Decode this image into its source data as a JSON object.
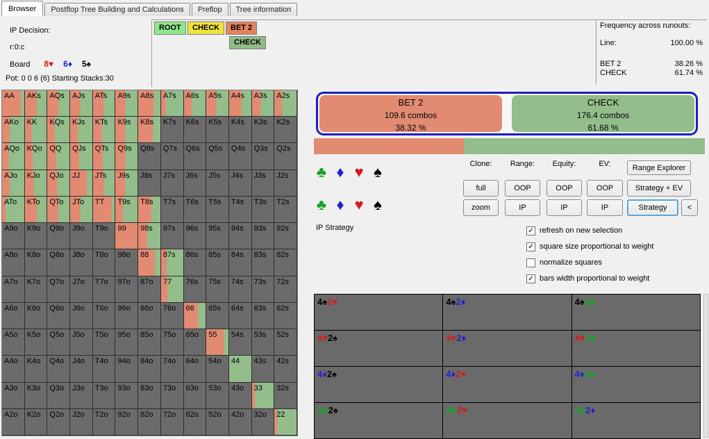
{
  "tabs": [
    {
      "label": "Browser",
      "active": true
    },
    {
      "label": "Postflop Tree Building and Calculations",
      "active": false
    },
    {
      "label": "Preflop",
      "active": false
    },
    {
      "label": "Tree information",
      "active": false
    }
  ],
  "info": {
    "decision_label": "IP Decision:",
    "node_id": "r:0:c",
    "board_label": "Board",
    "board_cards": [
      [
        "8",
        "h"
      ],
      [
        "6",
        "d"
      ],
      [
        "5",
        "s"
      ]
    ],
    "pot_line": "Pot: 0 0 6 (6) Starting Stacks:30"
  },
  "tree": {
    "nodes": [
      {
        "label": "ROOT",
        "color": "#8ee88c"
      },
      {
        "label": "CHECK",
        "color": "#f2e33c"
      },
      {
        "label": "BET 2",
        "color": "#e2845e"
      },
      {
        "label": "CHECK",
        "color": "#90bc85"
      }
    ]
  },
  "frequency": {
    "title": "Frequency across runouts:",
    "rows": [
      {
        "label": "Line:",
        "value": "100.00 %"
      },
      {
        "label": "BET 2",
        "value": "38.26 %"
      },
      {
        "label": "CHECK",
        "value": "61.74 %"
      }
    ]
  },
  "actions": {
    "bet": {
      "label": "BET 2",
      "combos": "109.6 combos",
      "pct": "38.32 %"
    },
    "check": {
      "label": "CHECK",
      "combos": "176.4 combos",
      "pct": "61.68 %"
    },
    "bar_bet_pct": 38.32
  },
  "suit_rows": [
    [
      "c",
      "d",
      "h",
      "s"
    ],
    [
      "c",
      "d",
      "h",
      "s"
    ]
  ],
  "toolbar": {
    "columns": [
      {
        "label": "Clone:",
        "buttons": [
          "full",
          "zoom"
        ]
      },
      {
        "label": "Range:",
        "buttons": [
          "OOP",
          "IP"
        ]
      },
      {
        "label": "Equity:",
        "buttons": [
          "OOP",
          "IP"
        ]
      },
      {
        "label": "EV:",
        "buttons": [
          "OOP",
          "IP"
        ]
      }
    ],
    "right_buttons": [
      {
        "label": "Range Explorer",
        "focus": false
      },
      {
        "label": "Strategy + EV",
        "focus": false
      },
      {
        "label": "Strategy",
        "focus": true
      },
      {
        "label": "<",
        "focus": false
      }
    ]
  },
  "strategy_label": "IP Strategy",
  "checkboxes": [
    {
      "label": "refresh on new selection",
      "checked": true
    },
    {
      "label": "square size proportional to weight",
      "checked": true
    },
    {
      "label": "normalize squares",
      "checked": false
    },
    {
      "label": "bars width proportional to weight",
      "checked": true
    }
  ],
  "matrix": {
    "rows": [
      [
        [
          "AA",
          0.85
        ],
        [
          "AKs",
          0.55
        ],
        [
          "AQs",
          0.5
        ],
        [
          "AJs",
          0.45
        ],
        [
          "ATs",
          0.5
        ],
        [
          "A9s",
          0.45
        ],
        [
          "A8s",
          0.7
        ],
        [
          "A7s",
          0.2
        ],
        [
          "A6s",
          0.35
        ],
        [
          "A5s",
          0.45
        ],
        [
          "A4s",
          0.55
        ],
        [
          "A3s",
          0.4
        ],
        [
          "A2s",
          0.35
        ]
      ],
      [
        [
          "AKo",
          0.35
        ],
        [
          "KK",
          0.3
        ],
        [
          "KQs",
          0.35
        ],
        [
          "KJs",
          0.35
        ],
        [
          "KTs",
          0.4
        ],
        [
          "K9s",
          0.45
        ],
        [
          "K8s",
          0.65
        ],
        [
          "K7s",
          null
        ],
        [
          "K6s",
          null
        ],
        [
          "K5s",
          null
        ],
        [
          "K4s",
          null
        ],
        [
          "K3s",
          null
        ],
        [
          "K2s",
          null
        ]
      ],
      [
        [
          "AQo",
          0.3
        ],
        [
          "KQo",
          0.35
        ],
        [
          "QQ",
          0.4
        ],
        [
          "QJs",
          0.4
        ],
        [
          "QTs",
          0.45
        ],
        [
          "Q9s",
          0.45
        ],
        [
          "Q8s",
          null
        ],
        [
          "Q7s",
          null
        ],
        [
          "Q6s",
          null
        ],
        [
          "Q5s",
          null
        ],
        [
          "Q4s",
          null
        ],
        [
          "Q3s",
          null
        ],
        [
          "Q2s",
          null
        ]
      ],
      [
        [
          "AJo",
          0.35
        ],
        [
          "KJo",
          0.4
        ],
        [
          "QJo",
          0.45
        ],
        [
          "JJ",
          0.75
        ],
        [
          "JTs",
          0.5
        ],
        [
          "J9s",
          0.45
        ],
        [
          "J8s",
          null
        ],
        [
          "J7s",
          null
        ],
        [
          "J6s",
          null
        ],
        [
          "J5s",
          null
        ],
        [
          "J4s",
          null
        ],
        [
          "J3s",
          null
        ],
        [
          "J2s",
          null
        ]
      ],
      [
        [
          "ATo",
          0.15
        ],
        [
          "KTo",
          0.55
        ],
        [
          "QTo",
          0.5
        ],
        [
          "JTo",
          0.45
        ],
        [
          "TT",
          0.85
        ],
        [
          "T9s",
          0.35
        ],
        [
          "T8s",
          0.6
        ],
        [
          "T7s",
          null
        ],
        [
          "T6s",
          null
        ],
        [
          "T5s",
          null
        ],
        [
          "T4s",
          null
        ],
        [
          "T3s",
          null
        ],
        [
          "T2s",
          null
        ]
      ],
      [
        [
          "A9o",
          null
        ],
        [
          "K9o",
          null
        ],
        [
          "Q9o",
          null
        ],
        [
          "J9o",
          null
        ],
        [
          "T9o",
          null
        ],
        [
          "99",
          1
        ],
        [
          "98s",
          0.4
        ],
        [
          "97s",
          null
        ],
        [
          "96s",
          null
        ],
        [
          "95s",
          null
        ],
        [
          "94s",
          null
        ],
        [
          "93s",
          null
        ],
        [
          "92s",
          null
        ]
      ],
      [
        [
          "A8o",
          null
        ],
        [
          "K8o",
          null
        ],
        [
          "Q8o",
          null
        ],
        [
          "J8o",
          null
        ],
        [
          "T8o",
          null
        ],
        [
          "98o",
          null
        ],
        [
          "88",
          0.75
        ],
        [
          "87s",
          0.25
        ],
        [
          "86s",
          null
        ],
        [
          "85s",
          null
        ],
        [
          "84s",
          null
        ],
        [
          "83s",
          null
        ],
        [
          "82s",
          null
        ]
      ],
      [
        [
          "A7o",
          null
        ],
        [
          "K7o",
          null
        ],
        [
          "Q7o",
          null
        ],
        [
          "J7o",
          null
        ],
        [
          "T7o",
          null
        ],
        [
          "97o",
          null
        ],
        [
          "87o",
          null
        ],
        [
          "77",
          0.3
        ],
        [
          "76s",
          null
        ],
        [
          "75s",
          null
        ],
        [
          "74s",
          null
        ],
        [
          "73s",
          null
        ],
        [
          "72s",
          null
        ]
      ],
      [
        [
          "A6o",
          null
        ],
        [
          "K6o",
          null
        ],
        [
          "Q6o",
          null
        ],
        [
          "J6o",
          null
        ],
        [
          "T6o",
          null
        ],
        [
          "96o",
          null
        ],
        [
          "86o",
          null
        ],
        [
          "76o",
          null
        ],
        [
          "66",
          0.65
        ],
        [
          "65s",
          null
        ],
        [
          "64s",
          null
        ],
        [
          "63s",
          null
        ],
        [
          "62s",
          null
        ]
      ],
      [
        [
          "A5o",
          null
        ],
        [
          "K5o",
          null
        ],
        [
          "Q5o",
          null
        ],
        [
          "J5o",
          null
        ],
        [
          "T5o",
          null
        ],
        [
          "95o",
          null
        ],
        [
          "85o",
          null
        ],
        [
          "75o",
          null
        ],
        [
          "65o",
          null
        ],
        [
          "55",
          0.8
        ],
        [
          "54s",
          null
        ],
        [
          "53s",
          null
        ],
        [
          "52s",
          null
        ]
      ],
      [
        [
          "A4o",
          null
        ],
        [
          "K4o",
          null
        ],
        [
          "Q4o",
          null
        ],
        [
          "J4o",
          null
        ],
        [
          "T4o",
          null
        ],
        [
          "94o",
          null
        ],
        [
          "84o",
          null
        ],
        [
          "74o",
          null
        ],
        [
          "64o",
          null
        ],
        [
          "54o",
          null
        ],
        [
          "44",
          0
        ],
        [
          "43s",
          null
        ],
        [
          "42s",
          null
        ]
      ],
      [
        [
          "A3o",
          null
        ],
        [
          "K3o",
          null
        ],
        [
          "Q3o",
          null
        ],
        [
          "J3o",
          null
        ],
        [
          "T3o",
          null
        ],
        [
          "93o",
          null
        ],
        [
          "83o",
          null
        ],
        [
          "73o",
          null
        ],
        [
          "63o",
          null
        ],
        [
          "53o",
          null
        ],
        [
          "43o",
          null
        ],
        [
          "33",
          0.15
        ],
        [
          "32s",
          null
        ]
      ],
      [
        [
          "A2o",
          null
        ],
        [
          "K2o",
          null
        ],
        [
          "Q2o",
          null
        ],
        [
          "J2o",
          null
        ],
        [
          "T2o",
          null
        ],
        [
          "92o",
          null
        ],
        [
          "82o",
          null
        ],
        [
          "72o",
          null
        ],
        [
          "62o",
          null
        ],
        [
          "52o",
          null
        ],
        [
          "42o",
          null
        ],
        [
          "32o",
          null
        ],
        [
          "22",
          0.12
        ]
      ]
    ]
  },
  "combo_grid": {
    "rows": [
      [
        [
          [
            "4",
            "s"
          ],
          [
            "2",
            "h"
          ]
        ],
        [
          [
            "4",
            "s"
          ],
          [
            "2",
            "d"
          ]
        ],
        [
          [
            "4",
            "s"
          ],
          [
            "2",
            "c"
          ]
        ]
      ],
      [
        [
          [
            "4",
            "h"
          ],
          [
            "2",
            "s"
          ]
        ],
        [
          [
            "4",
            "h"
          ],
          [
            "2",
            "d"
          ]
        ],
        [
          [
            "4",
            "h"
          ],
          [
            "2",
            "c"
          ]
        ]
      ],
      [
        [
          [
            "4",
            "d"
          ],
          [
            "2",
            "s"
          ]
        ],
        [
          [
            "4",
            "d"
          ],
          [
            "2",
            "h"
          ]
        ],
        [
          [
            "4",
            "d"
          ],
          [
            "2",
            "c"
          ]
        ]
      ],
      [
        [
          [
            "4",
            "c"
          ],
          [
            "2",
            "s"
          ]
        ],
        [
          [
            "4",
            "c"
          ],
          [
            "2",
            "h"
          ]
        ],
        [
          [
            "4",
            "c"
          ],
          [
            "2",
            "d"
          ]
        ]
      ]
    ]
  },
  "colors": {
    "bet": "#e28b72",
    "check": "#93bd8b",
    "out_of_range": "#6b6b6b",
    "blue_border": "#1d1dc2",
    "suits": {
      "s": "#000000",
      "h": "#d41c1c",
      "d": "#2323cc",
      "c": "#18a428"
    }
  }
}
